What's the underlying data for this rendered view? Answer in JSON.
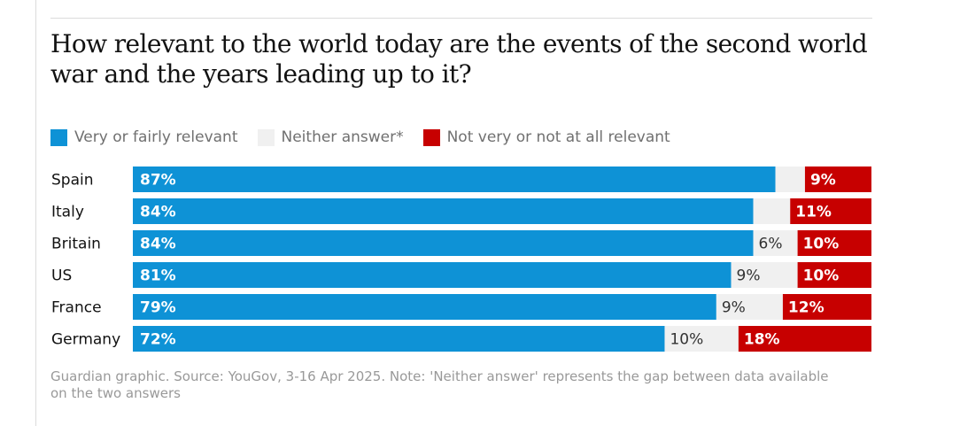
{
  "title": "How relevant to the world today are the events of the second world war and the years leading up to it?",
  "legend": [
    {
      "label": "Very or fairly relevant",
      "color": "#0E92D6"
    },
    {
      "label": "Neither answer*",
      "color": "#F0F0F0"
    },
    {
      "label": "Not very or not at all relevant",
      "color": "#C70000"
    }
  ],
  "footnote": "Guardian graphic. Source: YouGov, 3-16 Apr 2025. Note: 'Neither answer' represents the gap between data available on the two answers",
  "chart_data": {
    "type": "bar",
    "orientation": "horizontal",
    "stacked": true,
    "categories": [
      "Spain",
      "Italy",
      "Britain",
      "US",
      "France",
      "Germany"
    ],
    "series": [
      {
        "name": "Very or fairly relevant",
        "values": [
          87,
          84,
          84,
          81,
          79,
          72
        ],
        "color": "#0E92D6",
        "labels": [
          "87%",
          "84%",
          "84%",
          "81%",
          "79%",
          "72%"
        ]
      },
      {
        "name": "Neither answer*",
        "values": [
          4,
          5,
          6,
          9,
          9,
          10
        ],
        "color": "#F0F0F0",
        "labels": [
          "",
          "",
          "6%",
          "9%",
          "9%",
          "10%"
        ]
      },
      {
        "name": "Not very or not at all relevant",
        "values": [
          9,
          11,
          10,
          10,
          12,
          18
        ],
        "color": "#C70000",
        "labels": [
          "9%",
          "11%",
          "10%",
          "10%",
          "12%",
          "18%"
        ]
      }
    ],
    "xlim": [
      0,
      100
    ],
    "legend_position": "top-left"
  }
}
